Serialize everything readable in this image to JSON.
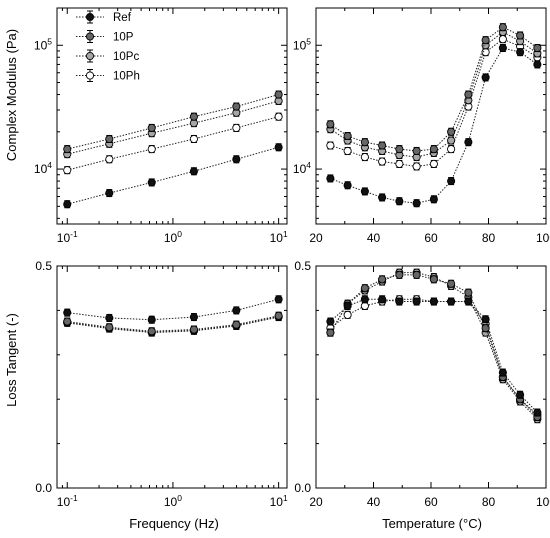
{
  "figure": {
    "ylabel_top": "Complex Modulus (Pa)",
    "ylabel_bottom": "Loss Tangent (-)",
    "xlabel_left": "Frequency (Hz)",
    "xlabel_right": "Temperature (°C)"
  },
  "legend": {
    "entries": [
      {
        "name": "Ref",
        "color": "#111111"
      },
      {
        "name": "10P",
        "color": "#666666"
      },
      {
        "name": "10Pc",
        "color": "#a6a6a6"
      },
      {
        "name": "10Ph",
        "color": "#ffffff"
      }
    ]
  },
  "chart_data": [
    {
      "type": "scatter",
      "panel": "top-left",
      "xscale": "log",
      "yscale": "log",
      "xlim": [
        0.08,
        12
      ],
      "ylim": [
        3600,
        200000
      ],
      "xticks": [
        {
          "v": 0.1,
          "base": "10",
          "exp": "-1"
        },
        {
          "v": 1,
          "base": "10",
          "exp": "0"
        },
        {
          "v": 10,
          "base": "10",
          "exp": "1"
        }
      ],
      "yticks": [
        {
          "v": 10000,
          "base": "10",
          "exp": "4"
        },
        {
          "v": 100000,
          "base": "10",
          "exp": "5"
        }
      ],
      "x": [
        0.1,
        0.25,
        0.63,
        1.58,
        3.98,
        10
      ],
      "series": [
        {
          "name": "Ref",
          "values": [
            5200,
            6400,
            7800,
            9600,
            12000,
            15000
          ]
        },
        {
          "name": "10P",
          "values": [
            14500,
            17500,
            21500,
            26500,
            32000,
            40000
          ]
        },
        {
          "name": "10Pc",
          "values": [
            13200,
            16000,
            19500,
            23500,
            28500,
            35500
          ]
        },
        {
          "name": "10Ph",
          "values": [
            9800,
            12000,
            14500,
            17500,
            21500,
            26500
          ]
        }
      ]
    },
    {
      "type": "scatter",
      "panel": "top-right",
      "xscale": "linear",
      "yscale": "log",
      "xlim": [
        20,
        100
      ],
      "ylim": [
        3600,
        200000
      ],
      "xticks": [
        20,
        40,
        60,
        80,
        100
      ],
      "yticks": [
        {
          "v": 10000,
          "base": "10",
          "exp": "4"
        },
        {
          "v": 100000,
          "base": "10",
          "exp": "5"
        }
      ],
      "series": [
        {
          "name": "Ref",
          "x": [
            25,
            31,
            37,
            43,
            49,
            55,
            61,
            67,
            73,
            79,
            85,
            91,
            97
          ],
          "values": [
            8400,
            7400,
            6600,
            5900,
            5500,
            5300,
            5700,
            8000,
            16500,
            55000,
            95000,
            88000,
            70000
          ]
        },
        {
          "name": "10P",
          "x": [
            25,
            31,
            37,
            43,
            49,
            55,
            61,
            67,
            73,
            79,
            85,
            91,
            97
          ],
          "values": [
            23000,
            18500,
            16500,
            15500,
            14500,
            14000,
            14500,
            20000,
            40000,
            110000,
            140000,
            120000,
            95000
          ]
        },
        {
          "name": "10Pc",
          "x": [
            25,
            31,
            37,
            43,
            49,
            55,
            61,
            67,
            73,
            79,
            85,
            91,
            97
          ],
          "values": [
            21000,
            17000,
            15000,
            14000,
            13000,
            12500,
            13500,
            17000,
            36000,
            100000,
            128000,
            108000,
            86000
          ]
        },
        {
          "name": "10Ph",
          "x": [
            25,
            31,
            37,
            43,
            49,
            55,
            61,
            67,
            73,
            79,
            85,
            91,
            97
          ],
          "values": [
            15500,
            14000,
            12500,
            11500,
            11000,
            10500,
            11000,
            14500,
            32000,
            88000,
            112000,
            98000,
            80000
          ]
        }
      ]
    },
    {
      "type": "scatter",
      "panel": "bottom-left",
      "xscale": "log",
      "yscale": "linear",
      "xlim": [
        0.08,
        12
      ],
      "ylim": [
        0,
        0.5
      ],
      "xticks": [
        {
          "v": 0.1,
          "base": "10",
          "exp": "-1"
        },
        {
          "v": 1,
          "base": "10",
          "exp": "0"
        },
        {
          "v": 10,
          "base": "10",
          "exp": "1"
        }
      ],
      "yticks": [
        {
          "v": 0,
          "label": "0.0"
        },
        {
          "v": 0.5,
          "label": "0.5"
        }
      ],
      "x": [
        0.1,
        0.25,
        0.63,
        1.58,
        3.98,
        10
      ],
      "series": [
        {
          "name": "Ref",
          "values": [
            0.395,
            0.383,
            0.379,
            0.385,
            0.4,
            0.425
          ]
        },
        {
          "name": "10P",
          "values": [
            0.375,
            0.362,
            0.353,
            0.357,
            0.368,
            0.388
          ]
        },
        {
          "name": "10Pc",
          "values": [
            0.373,
            0.36,
            0.351,
            0.355,
            0.366,
            0.386
          ]
        },
        {
          "name": "10Ph",
          "values": [
            0.372,
            0.359,
            0.35,
            0.354,
            0.365,
            0.385
          ]
        }
      ]
    },
    {
      "type": "scatter",
      "panel": "bottom-right",
      "xscale": "linear",
      "yscale": "linear",
      "xlim": [
        20,
        100
      ],
      "ylim": [
        0,
        0.5
      ],
      "xticks": [
        20,
        40,
        60,
        80,
        100
      ],
      "yticks": [
        {
          "v": 0,
          "label": "0.0"
        },
        {
          "v": 0.5,
          "label": "0.5"
        }
      ],
      "series": [
        {
          "name": "Ref",
          "x": [
            25,
            31,
            37,
            43,
            49,
            55,
            61,
            67,
            73,
            79,
            85,
            91,
            97
          ],
          "values": [
            0.375,
            0.41,
            0.425,
            0.425,
            0.42,
            0.42,
            0.42,
            0.42,
            0.42,
            0.38,
            0.26,
            0.21,
            0.17
          ]
        },
        {
          "name": "10P",
          "x": [
            25,
            31,
            37,
            43,
            49,
            55,
            61,
            67,
            73,
            79,
            85,
            91,
            97
          ],
          "values": [
            0.35,
            0.415,
            0.45,
            0.47,
            0.48,
            0.48,
            0.47,
            0.46,
            0.44,
            0.36,
            0.25,
            0.2,
            0.16
          ]
        },
        {
          "name": "10Pc",
          "x": [
            25,
            31,
            37,
            43,
            49,
            55,
            61,
            67,
            73,
            79,
            85,
            91,
            97
          ],
          "values": [
            0.35,
            0.415,
            0.445,
            0.465,
            0.485,
            0.485,
            0.475,
            0.455,
            0.43,
            0.35,
            0.245,
            0.195,
            0.155
          ]
        },
        {
          "name": "10Ph",
          "x": [
            25,
            31,
            37,
            43,
            49,
            55,
            61,
            67,
            73,
            79,
            85,
            91,
            97
          ],
          "values": [
            0.36,
            0.39,
            0.41,
            0.42,
            0.425,
            0.425,
            0.42,
            0.42,
            0.42,
            0.37,
            0.25,
            0.2,
            0.165
          ]
        }
      ]
    }
  ]
}
